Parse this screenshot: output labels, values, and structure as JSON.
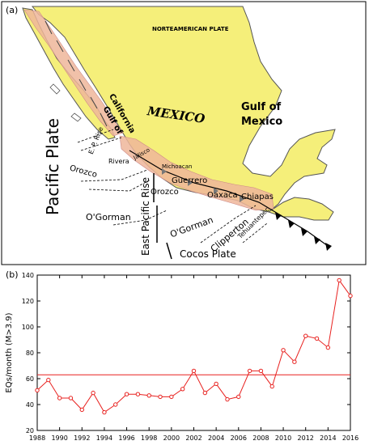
{
  "panel_a": {
    "tag": "(a)",
    "plates": {
      "north_american": "NORTEAMERICAN PLATE",
      "pacific": "Pacific Plate",
      "cocos": "Cocos Plate"
    },
    "regions": {
      "mexico": "MEXICO",
      "gulf_of_mexico_line1": "Gulf of",
      "gulf_of_mexico_line2": "Mexico",
      "gulf_of_california_line1": "Gulf of",
      "gulf_of_california_line2": "California",
      "jalisco": "Jalisco",
      "michoacan": "Michoacan",
      "guerrero": "Guerrero",
      "oaxaca": "Oaxaca",
      "chiapas": "Chiapas"
    },
    "features": {
      "ep_rise": "E. P. Rise",
      "rivera": "Rivera",
      "orozco_left": "Orozco",
      "orozco_right": "Orozco",
      "ogorman_left": "O'Gorman",
      "ogorman_right": "O'Gorman",
      "east_pacific_rise": "East Pacific Rise",
      "clipperton": "Clipperton",
      "tehuantepec": "Tehuantepec"
    },
    "colors": {
      "land": "#f5ef7a",
      "rupture_zone": "#eeb69a",
      "coast": "#555555"
    }
  },
  "panel_b": {
    "tag": "(b)",
    "chart_data": {
      "type": "line",
      "title": "",
      "xlabel": "",
      "ylabel": "EQs/month (M>3.9)",
      "xlim": [
        1988,
        2016
      ],
      "ylim": [
        20,
        140
      ],
      "xticks": [
        "1988",
        "1990",
        "1992",
        "1994",
        "1996",
        "1998",
        "2000",
        "2002",
        "2004",
        "2006",
        "2008",
        "2010",
        "2012",
        "2014",
        "2016"
      ],
      "yticks": [
        "20",
        "40",
        "60",
        "80",
        "100",
        "120",
        "140"
      ],
      "series": [
        {
          "x": [
            1988,
            1989,
            1990,
            1991,
            1992,
            1993,
            1994,
            1995,
            1996,
            1997,
            1998,
            1999,
            2000,
            2001,
            2002,
            2003,
            2004,
            2005,
            2006,
            2007,
            2008,
            2009,
            2010,
            2011,
            2012,
            2013,
            2014,
            2015,
            2016
          ],
          "values": [
            51,
            59,
            45,
            45,
            36,
            49,
            34,
            40,
            48,
            48,
            47,
            46,
            46,
            52,
            66,
            49,
            56,
            44,
            46,
            66,
            66,
            54,
            82,
            73,
            93,
            91,
            84,
            136,
            124
          ],
          "color": "#e8211f"
        }
      ],
      "reference_line": {
        "y": 63,
        "color": "#e8211f"
      },
      "grid": false
    }
  }
}
